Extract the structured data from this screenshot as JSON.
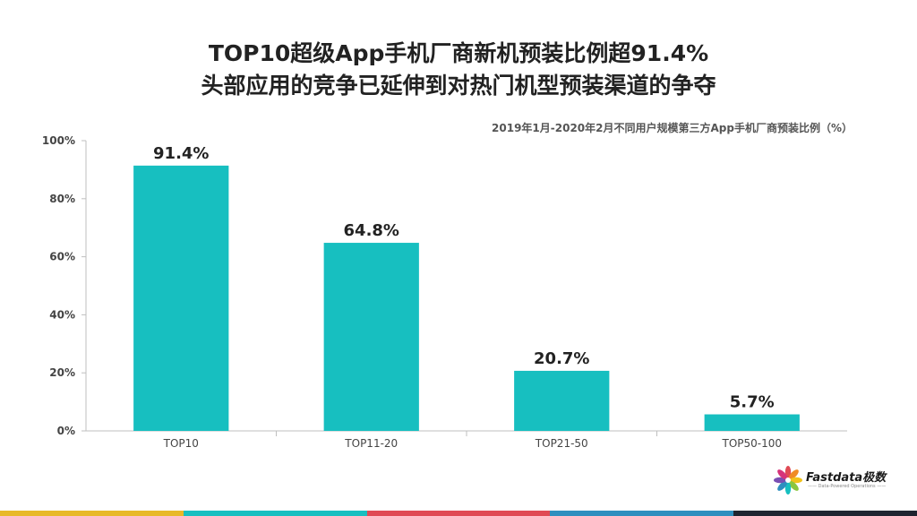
{
  "header": {
    "title_line1": "TOP10超级App手机厂商新机预装比例超91.4%",
    "title_line2": "头部应用的竞争已延伸到对热门机型预装渠道的争夺"
  },
  "chart_data": {
    "type": "bar",
    "title": "2019年1月-2020年2月不同用户规模第三方App手机厂商预装比例（%）",
    "categories": [
      "TOP10",
      "TOP11-20",
      "TOP21-50",
      "TOP50-100"
    ],
    "values": [
      91.4,
      64.8,
      20.7,
      5.7
    ],
    "data_labels": [
      "91.4%",
      "64.8%",
      "20.7%",
      "5.7%"
    ],
    "ylim": [
      0,
      100
    ],
    "y_ticks": [
      0,
      20,
      40,
      60,
      80,
      100
    ],
    "y_tick_labels": [
      "0%",
      "20%",
      "40%",
      "60%",
      "80%",
      "100%"
    ],
    "grid": false,
    "bar_color": "#17bfc0",
    "axis_color": "#bfbfbf"
  },
  "logo": {
    "name": "Fastdata极数",
    "tagline": "—— Data-Powered Operations ——"
  },
  "strip_colors": [
    "#e8b928",
    "#17bfc0",
    "#e04a55",
    "#2e8fbf",
    "#1f2430"
  ]
}
